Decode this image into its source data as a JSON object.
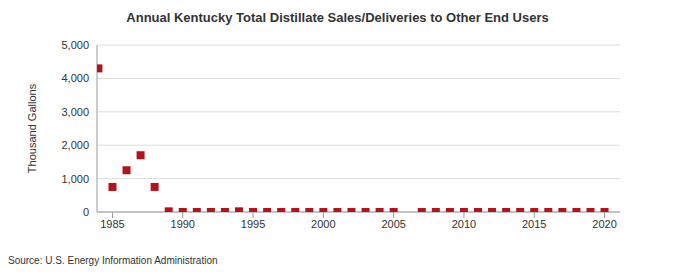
{
  "chart_data": {
    "type": "scatter",
    "title": "Annual Kentucky Total Distillate Sales/Deliveries to Other End Users",
    "source": "Source: U.S. Energy Information Administration",
    "y_label": "Thousand Gallons",
    "x": [
      1984,
      1985,
      1986,
      1987,
      1988,
      1989,
      1990,
      1991,
      1992,
      1993,
      1994,
      1995,
      1996,
      1997,
      1998,
      1999,
      2000,
      2001,
      2002,
      2003,
      2004,
      2005,
      2006,
      2007,
      2008,
      2009,
      2010,
      2011,
      2012,
      2013,
      2014,
      2015,
      2016,
      2017,
      2018,
      2019,
      2020
    ],
    "values": [
      4300,
      750,
      1250,
      1700,
      750,
      20,
      0,
      0,
      0,
      0,
      20,
      0,
      0,
      0,
      0,
      0,
      0,
      0,
      0,
      0,
      0,
      0,
      null,
      0,
      0,
      0,
      0,
      0,
      0,
      0,
      0,
      0,
      0,
      0,
      0,
      0,
      0
    ],
    "color": "#b5121b",
    "marker": "square",
    "xlim": [
      1983.9,
      2021.1
    ],
    "xticks": [
      1985,
      1990,
      1995,
      2000,
      2005,
      2010,
      2015,
      2020
    ],
    "ylim": [
      0,
      5000
    ],
    "yticks": [
      0,
      {
        "value": 1000,
        "label": "1,000"
      },
      {
        "value": 2000,
        "label": "2,000"
      },
      {
        "value": 3000,
        "label": "3,000"
      },
      {
        "value": 4000,
        "label": "4,000"
      },
      {
        "value": 5000,
        "label": "5,000"
      }
    ],
    "grid": true
  }
}
